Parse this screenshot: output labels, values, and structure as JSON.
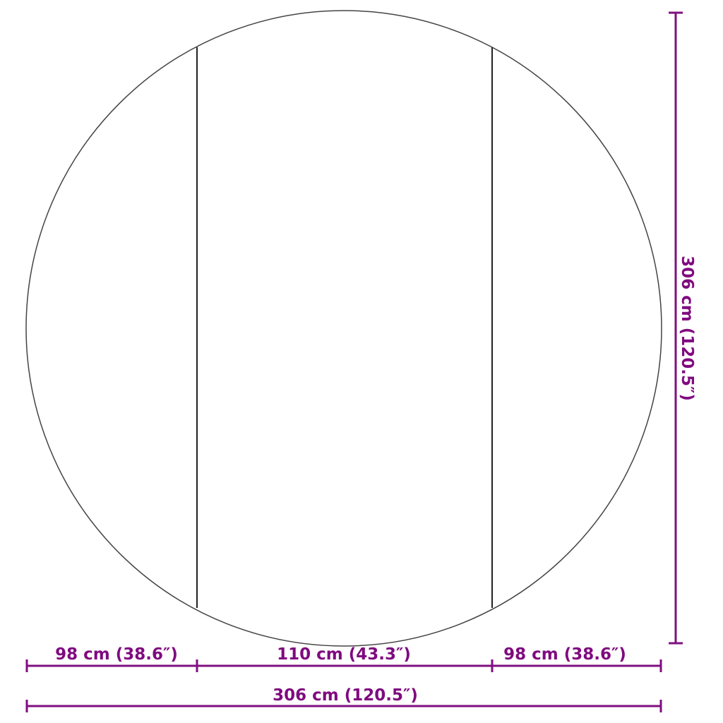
{
  "colors": {
    "dimension": "#800f80",
    "outline": "#333333"
  },
  "dimensions": {
    "left_segment": "98 cm (38.6″)",
    "middle_segment": "110 cm (43.3″)",
    "right_segment": "98 cm (38.6″)",
    "total_width": "306 cm (120.5″)",
    "total_height": "306 cm (120.5″)"
  }
}
